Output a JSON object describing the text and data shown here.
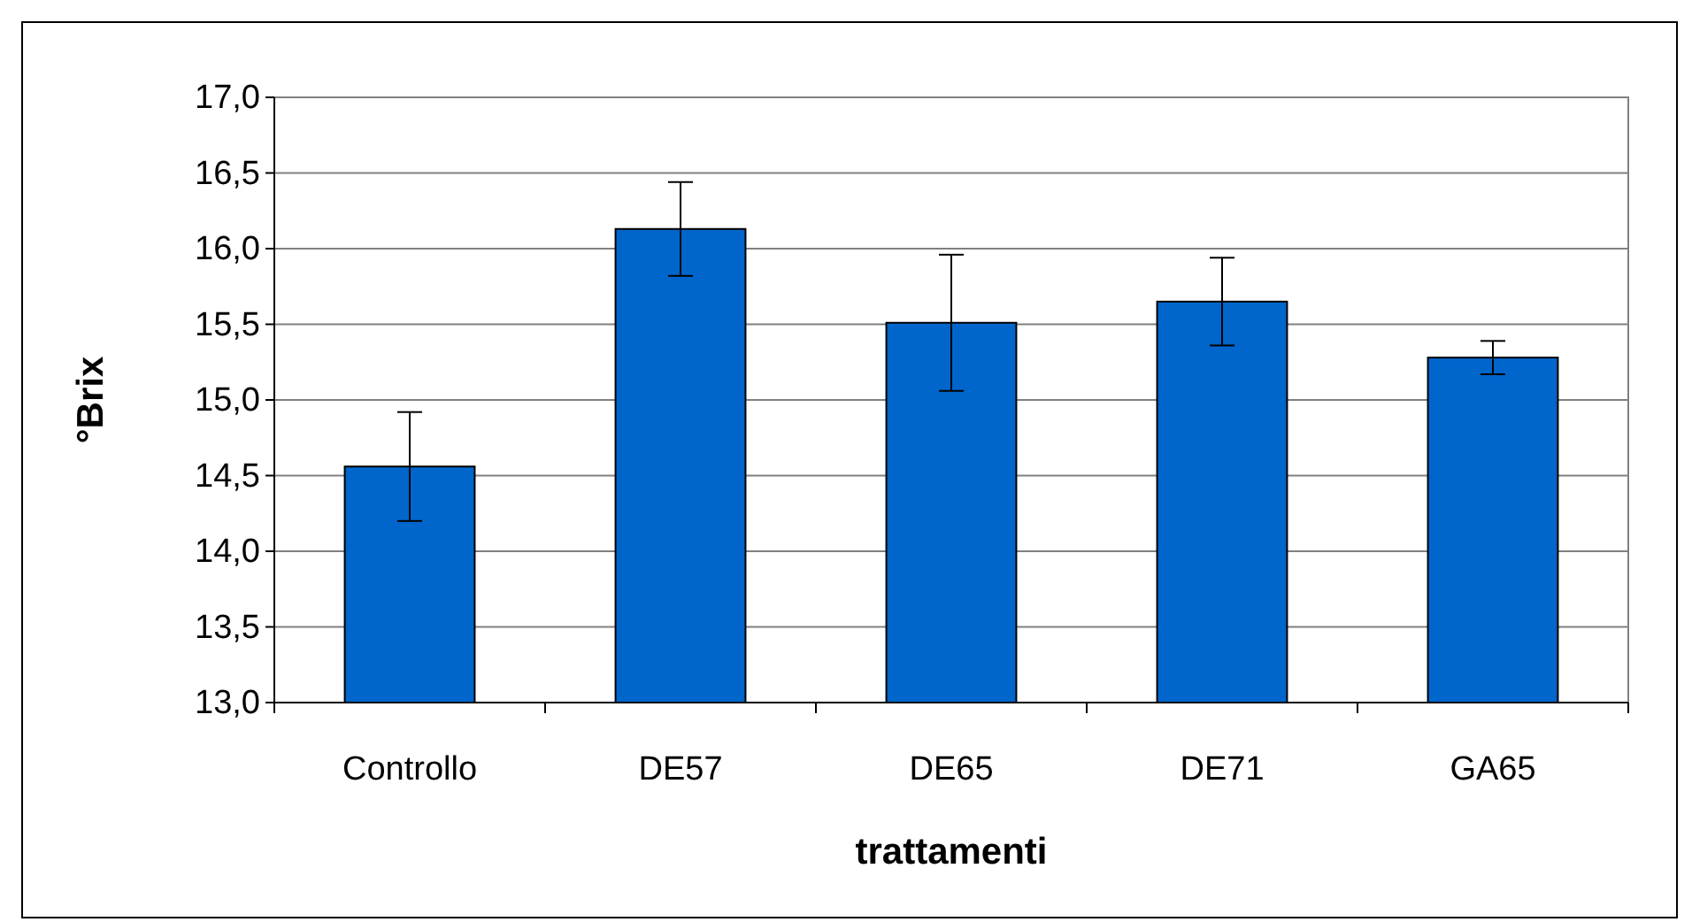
{
  "chart_data": {
    "type": "bar",
    "xlabel": "trattamenti",
    "ylabel": "°Brix",
    "categories": [
      "Controllo",
      "DE57",
      "DE65",
      "DE71",
      "GA65"
    ],
    "values": [
      14.56,
      16.13,
      15.51,
      15.65,
      15.28
    ],
    "errors": [
      0.36,
      0.31,
      0.45,
      0.29,
      0.11
    ],
    "color": "#0066cc",
    "ylim": [
      13,
      17
    ],
    "yticks": [
      {
        "value": 13,
        "label": "13,0"
      },
      {
        "value": 13.5,
        "label": "13,5"
      },
      {
        "value": 14,
        "label": "14,0"
      },
      {
        "value": 14.5,
        "label": "14,5"
      },
      {
        "value": 15,
        "label": "15,0"
      },
      {
        "value": 15.5,
        "label": "15,5"
      },
      {
        "value": 16,
        "label": "16,0"
      },
      {
        "value": 16.5,
        "label": "16,5"
      },
      {
        "value": 17,
        "label": "17,0"
      }
    ],
    "grid": "y"
  }
}
